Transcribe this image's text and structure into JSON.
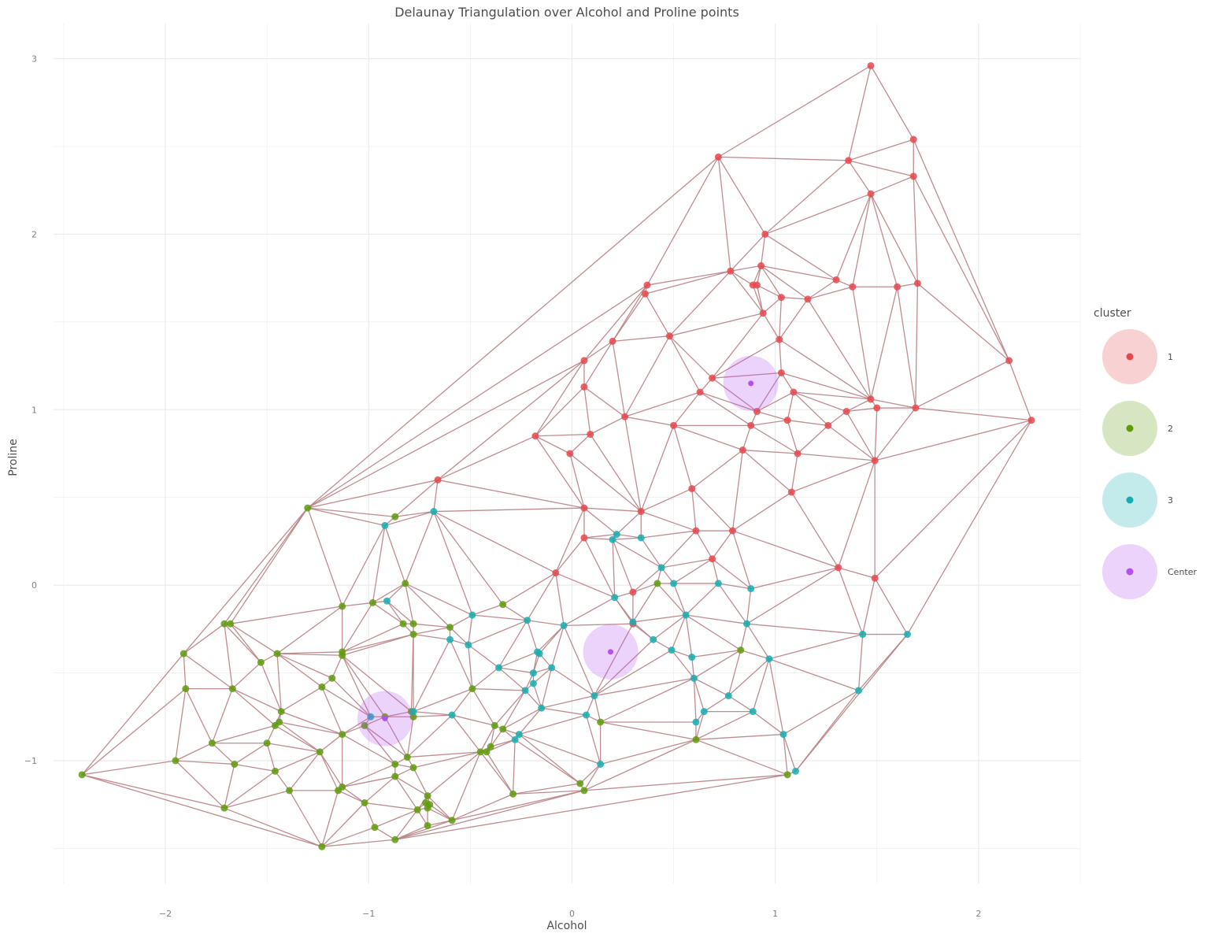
{
  "chart_data": {
    "type": "scatter",
    "title": "Delaunay Triangulation over Alcohol and Proline points",
    "xlabel": "Alcohol",
    "ylabel": "Proline",
    "xlim": [
      -2.55,
      2.5
    ],
    "ylim": [
      -1.7,
      3.2
    ],
    "xticks": [
      -2,
      -1,
      0,
      1,
      2
    ],
    "xtick_labels": [
      "−2",
      "−1",
      "0",
      "1",
      "2"
    ],
    "yticks": [
      -1,
      0,
      1,
      2,
      3
    ],
    "ytick_labels": [
      "−1",
      "0",
      "1",
      "2",
      "3"
    ],
    "grid": true,
    "legend_position": "right",
    "legend_title": "cluster",
    "colors": {
      "1": "#e5484d",
      "2": "#5e9b0c",
      "3": "#15aeb0",
      "Center": "#b44ff0",
      "edge": "#b88083",
      "grid": "#ebebeb",
      "text": "#4d4d4d",
      "tick": "#808080"
    },
    "legend": [
      {
        "key": "1",
        "label": "1"
      },
      {
        "key": "2",
        "label": "2"
      },
      {
        "key": "3",
        "label": "3"
      },
      {
        "key": "Center",
        "label": "Center"
      }
    ],
    "series": [
      {
        "name": "1",
        "points": [
          [
            1.47,
            2.96
          ],
          [
            1.68,
            2.54
          ],
          [
            0.72,
            2.44
          ],
          [
            1.36,
            2.42
          ],
          [
            1.68,
            2.33
          ],
          [
            1.47,
            2.23
          ],
          [
            0.95,
            2.0
          ],
          [
            0.78,
            1.79
          ],
          [
            0.93,
            1.82
          ],
          [
            1.3,
            1.74
          ],
          [
            1.38,
            1.7
          ],
          [
            1.6,
            1.7
          ],
          [
            1.7,
            1.72
          ],
          [
            0.37,
            1.71
          ],
          [
            0.36,
            1.66
          ],
          [
            0.89,
            1.71
          ],
          [
            0.91,
            1.71
          ],
          [
            1.03,
            1.64
          ],
          [
            1.16,
            1.63
          ],
          [
            0.94,
            1.55
          ],
          [
            0.48,
            1.42
          ],
          [
            0.2,
            1.39
          ],
          [
            1.02,
            1.4
          ],
          [
            0.06,
            1.28
          ],
          [
            2.15,
            1.28
          ],
          [
            0.69,
            1.18
          ],
          [
            1.03,
            1.21
          ],
          [
            0.06,
            1.13
          ],
          [
            0.63,
            1.1
          ],
          [
            1.09,
            1.1
          ],
          [
            1.47,
            1.06
          ],
          [
            1.35,
            0.99
          ],
          [
            1.5,
            1.01
          ],
          [
            1.69,
            1.01
          ],
          [
            0.91,
            0.99
          ],
          [
            0.26,
            0.96
          ],
          [
            1.06,
            0.94
          ],
          [
            2.26,
            0.94
          ],
          [
            0.5,
            0.91
          ],
          [
            0.88,
            0.91
          ],
          [
            1.26,
            0.91
          ],
          [
            -0.18,
            0.85
          ],
          [
            0.09,
            0.86
          ],
          [
            -0.01,
            0.75
          ],
          [
            0.84,
            0.77
          ],
          [
            1.11,
            0.75
          ],
          [
            1.49,
            0.71
          ],
          [
            -0.66,
            0.6
          ],
          [
            0.59,
            0.55
          ],
          [
            1.08,
            0.53
          ],
          [
            0.06,
            0.44
          ],
          [
            0.34,
            0.42
          ],
          [
            0.61,
            0.31
          ],
          [
            0.79,
            0.31
          ],
          [
            0.06,
            0.27
          ],
          [
            0.69,
            0.15
          ],
          [
            1.31,
            0.1
          ],
          [
            -0.08,
            0.07
          ],
          [
            1.49,
            0.04
          ],
          [
            0.3,
            -0.04
          ],
          [
            0.3,
            -0.22
          ]
        ]
      },
      {
        "name": "2",
        "points": [
          [
            -1.3,
            0.44
          ],
          [
            -0.87,
            0.39
          ],
          [
            -0.82,
            0.01
          ],
          [
            -1.13,
            -0.12
          ],
          [
            -0.98,
            -0.1
          ],
          [
            -0.34,
            -0.11
          ],
          [
            0.42,
            0.01
          ],
          [
            -1.68,
            -0.22
          ],
          [
            -1.71,
            -0.22
          ],
          [
            -0.83,
            -0.22
          ],
          [
            -0.78,
            -0.22
          ],
          [
            -0.6,
            -0.24
          ],
          [
            -0.78,
            -0.28
          ],
          [
            -1.91,
            -0.39
          ],
          [
            -1.45,
            -0.39
          ],
          [
            -1.13,
            -0.38
          ],
          [
            -1.13,
            -0.4
          ],
          [
            0.83,
            -0.37
          ],
          [
            -1.53,
            -0.44
          ],
          [
            -1.18,
            -0.53
          ],
          [
            -1.9,
            -0.59
          ],
          [
            -1.67,
            -0.59
          ],
          [
            -1.23,
            -0.58
          ],
          [
            -0.49,
            -0.59
          ],
          [
            -1.43,
            -0.72
          ],
          [
            -0.79,
            -0.72
          ],
          [
            -0.78,
            -0.75
          ],
          [
            -0.92,
            -0.75
          ],
          [
            -1.02,
            -0.8
          ],
          [
            -1.44,
            -0.78
          ],
          [
            -1.46,
            -0.8
          ],
          [
            -0.38,
            -0.8
          ],
          [
            -0.34,
            -0.82
          ],
          [
            -1.13,
            -0.85
          ],
          [
            0.14,
            -0.78
          ],
          [
            -1.77,
            -0.9
          ],
          [
            -1.5,
            -0.9
          ],
          [
            0.61,
            -0.88
          ],
          [
            -0.4,
            -0.92
          ],
          [
            -0.45,
            -0.95
          ],
          [
            -0.42,
            -0.95
          ],
          [
            -1.24,
            -0.95
          ],
          [
            -1.95,
            -1.0
          ],
          [
            -1.66,
            -1.02
          ],
          [
            -0.87,
            -1.02
          ],
          [
            -0.81,
            -0.98
          ],
          [
            -0.78,
            -1.04
          ],
          [
            -2.41,
            -1.08
          ],
          [
            -1.46,
            -1.06
          ],
          [
            -1.39,
            -1.17
          ],
          [
            -0.87,
            -1.09
          ],
          [
            -1.13,
            -1.15
          ],
          [
            -1.15,
            -1.17
          ],
          [
            0.04,
            -1.13
          ],
          [
            0.06,
            -1.17
          ],
          [
            -0.29,
            -1.19
          ],
          [
            1.06,
            -1.08
          ],
          [
            -0.71,
            -1.2
          ],
          [
            -1.71,
            -1.27
          ],
          [
            -1.02,
            -1.24
          ],
          [
            -0.72,
            -1.24
          ],
          [
            -0.7,
            -1.25
          ],
          [
            -0.76,
            -1.28
          ],
          [
            -0.71,
            -1.27
          ],
          [
            -0.59,
            -1.34
          ],
          [
            -0.97,
            -1.38
          ],
          [
            -0.71,
            -1.37
          ],
          [
            -0.87,
            -1.45
          ],
          [
            -1.23,
            -1.49
          ]
        ]
      },
      {
        "name": "3",
        "points": [
          [
            -0.68,
            0.42
          ],
          [
            -0.92,
            0.34
          ],
          [
            0.22,
            0.29
          ],
          [
            0.34,
            0.27
          ],
          [
            0.2,
            0.26
          ],
          [
            0.44,
            0.1
          ],
          [
            0.5,
            0.01
          ],
          [
            0.72,
            0.01
          ],
          [
            0.88,
            -0.02
          ],
          [
            -0.91,
            -0.09
          ],
          [
            0.21,
            -0.07
          ],
          [
            -0.49,
            -0.17
          ],
          [
            -0.22,
            -0.2
          ],
          [
            -0.04,
            -0.23
          ],
          [
            0.3,
            -0.21
          ],
          [
            0.56,
            -0.17
          ],
          [
            0.86,
            -0.22
          ],
          [
            1.43,
            -0.28
          ],
          [
            1.65,
            -0.28
          ],
          [
            -0.6,
            -0.31
          ],
          [
            -0.51,
            -0.34
          ],
          [
            0.4,
            -0.31
          ],
          [
            -0.17,
            -0.38
          ],
          [
            -0.16,
            -0.39
          ],
          [
            0.49,
            -0.37
          ],
          [
            0.59,
            -0.41
          ],
          [
            0.97,
            -0.42
          ],
          [
            -0.36,
            -0.47
          ],
          [
            -0.1,
            -0.47
          ],
          [
            -0.19,
            -0.5
          ],
          [
            -0.19,
            -0.56
          ],
          [
            -0.23,
            -0.6
          ],
          [
            0.6,
            -0.53
          ],
          [
            1.41,
            -0.6
          ],
          [
            0.11,
            -0.63
          ],
          [
            0.77,
            -0.63
          ],
          [
            -0.15,
            -0.7
          ],
          [
            0.65,
            -0.72
          ],
          [
            0.89,
            -0.72
          ],
          [
            -0.78,
            -0.72
          ],
          [
            -0.59,
            -0.74
          ],
          [
            0.07,
            -0.74
          ],
          [
            -0.99,
            -0.75
          ],
          [
            -0.26,
            -0.85
          ],
          [
            -0.28,
            -0.88
          ],
          [
            0.61,
            -0.78
          ],
          [
            1.04,
            -0.85
          ],
          [
            0.14,
            -1.02
          ],
          [
            1.1,
            -1.06
          ]
        ]
      },
      {
        "name": "Center",
        "points": [
          [
            0.88,
            1.15
          ],
          [
            0.19,
            -0.38
          ],
          [
            -0.92,
            -0.76
          ]
        ]
      }
    ]
  }
}
